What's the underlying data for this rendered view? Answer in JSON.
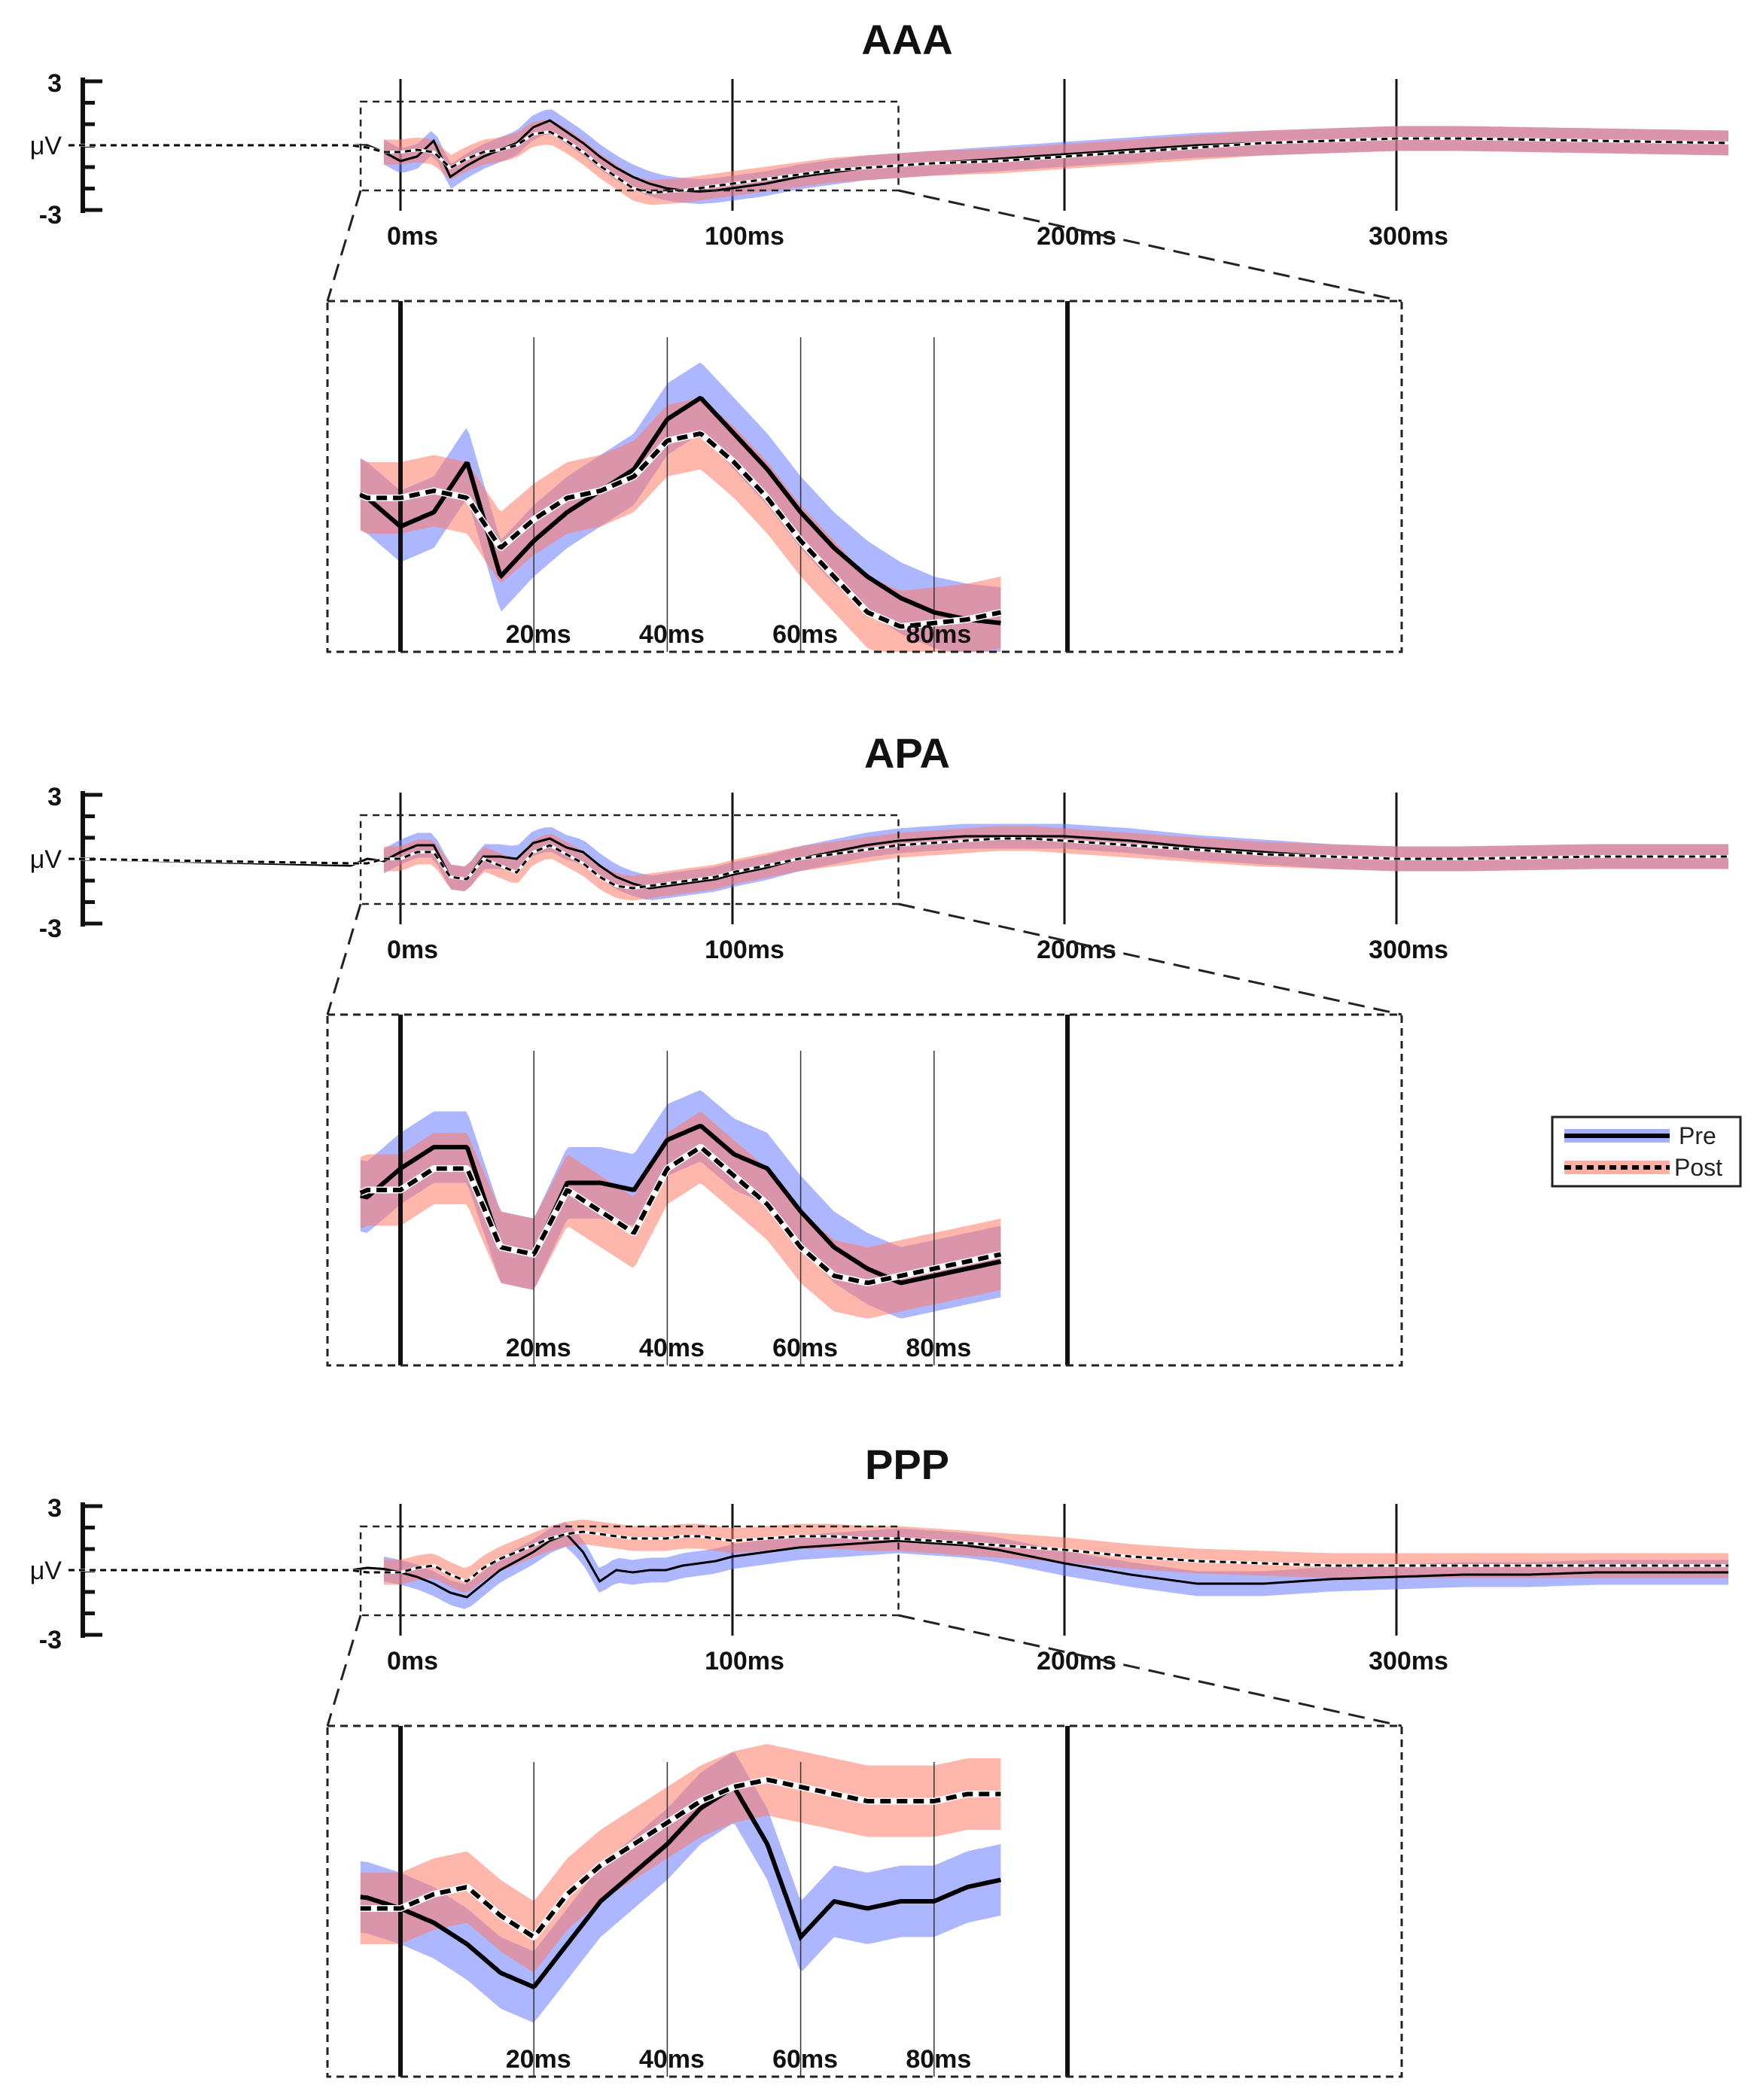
{
  "chart_data": [
    {
      "type": "line",
      "title": "AAA",
      "x_units": "ms",
      "xlim": [
        -100,
        400
      ],
      "ylim": [
        -3,
        3
      ],
      "y_axis": {
        "label": "μV",
        "ticks": [
          "3",
          "-3"
        ]
      },
      "x_ticks": [
        "0ms",
        "100ms",
        "200ms",
        "300ms"
      ],
      "inset": {
        "xlim": [
          -5,
          100
        ],
        "ticks": [
          "20ms",
          "40ms",
          "60ms",
          "80ms"
        ]
      },
      "series": [
        {
          "name": "Pre",
          "x": [
            -100,
            -15,
            -10,
            -5,
            0,
            5,
            10,
            15,
            20,
            25,
            30,
            35,
            40,
            45,
            50,
            55,
            60,
            65,
            70,
            75,
            80,
            85,
            90,
            95,
            100,
            110,
            120,
            130,
            140,
            150,
            160,
            170,
            180,
            190,
            200,
            220,
            240,
            260,
            280,
            300,
            320,
            340,
            360,
            380,
            400
          ],
          "y": [
            0,
            0,
            0,
            -0.3,
            -0.7,
            -0.5,
            0.2,
            -1.4,
            -0.9,
            -0.5,
            -0.2,
            0.1,
            0.8,
            1.1,
            0.6,
            0.1,
            -0.5,
            -1.0,
            -1.4,
            -1.7,
            -1.9,
            -2.0,
            -2.05,
            -2.0,
            -1.9,
            -1.7,
            -1.4,
            -1.2,
            -1.0,
            -0.9,
            -0.8,
            -0.7,
            -0.6,
            -0.5,
            -0.4,
            -0.2,
            0,
            0.1,
            0.2,
            0.3,
            0.3,
            0.25,
            0.2,
            0.15,
            0.1
          ]
        },
        {
          "name": "Post",
          "x": [
            -100,
            -15,
            -10,
            -5,
            0,
            5,
            10,
            15,
            20,
            25,
            30,
            35,
            40,
            45,
            50,
            55,
            60,
            65,
            70,
            75,
            80,
            85,
            90,
            95,
            100,
            110,
            120,
            130,
            140,
            150,
            160,
            170,
            180,
            190,
            200,
            220,
            240,
            260,
            280,
            300,
            320,
            340,
            360,
            380,
            400
          ],
          "y": [
            0,
            0,
            -0.1,
            -0.3,
            -0.3,
            -0.2,
            -0.3,
            -1.0,
            -0.6,
            -0.3,
            -0.2,
            0,
            0.5,
            0.6,
            0.2,
            -0.3,
            -0.9,
            -1.4,
            -1.9,
            -2.1,
            -2.05,
            -2.0,
            -1.9,
            -1.8,
            -1.7,
            -1.5,
            -1.3,
            -1.1,
            -1.0,
            -0.9,
            -0.8,
            -0.75,
            -0.7,
            -0.6,
            -0.5,
            -0.3,
            -0.1,
            0.1,
            0.2,
            0.3,
            0.3,
            0.25,
            0.2,
            0.15,
            0.1
          ]
        }
      ]
    },
    {
      "type": "line",
      "title": "APA",
      "x_units": "ms",
      "xlim": [
        -100,
        400
      ],
      "ylim": [
        -3,
        3
      ],
      "y_axis": {
        "label": "μV",
        "ticks": [
          "3",
          "-3"
        ]
      },
      "x_ticks": [
        "0ms",
        "100ms",
        "200ms",
        "300ms"
      ],
      "inset": {
        "xlim": [
          -5,
          100
        ],
        "ticks": [
          "20ms",
          "40ms",
          "60ms",
          "80ms"
        ]
      },
      "series": [
        {
          "name": "Pre",
          "x": [
            -100,
            -15,
            -10,
            -5,
            0,
            5,
            10,
            15,
            20,
            25,
            30,
            35,
            40,
            45,
            50,
            55,
            60,
            65,
            70,
            75,
            80,
            85,
            90,
            95,
            100,
            110,
            120,
            130,
            140,
            150,
            160,
            170,
            180,
            190,
            200,
            220,
            240,
            260,
            280,
            300,
            320,
            340,
            360,
            380,
            400
          ],
          "y": [
            0,
            -0.3,
            0,
            -0.1,
            0.3,
            0.6,
            0.6,
            -0.8,
            -0.9,
            0.1,
            0.1,
            0.0,
            0.7,
            0.9,
            0.5,
            0.3,
            -0.3,
            -0.8,
            -1.1,
            -1.3,
            -1.2,
            -1.1,
            -1.0,
            -0.9,
            -0.7,
            -0.4,
            0,
            0.3,
            0.6,
            0.8,
            0.9,
            1.0,
            1.0,
            1.0,
            1.0,
            0.8,
            0.5,
            0.3,
            0.1,
            0,
            0,
            0.05,
            0.1,
            0.1,
            0.1
          ]
        },
        {
          "name": "Post",
          "x": [
            -100,
            -15,
            -10,
            -5,
            0,
            5,
            10,
            15,
            20,
            25,
            30,
            35,
            40,
            45,
            50,
            55,
            60,
            65,
            70,
            75,
            80,
            85,
            90,
            95,
            100,
            110,
            120,
            130,
            140,
            150,
            160,
            170,
            180,
            190,
            200,
            220,
            240,
            260,
            280,
            300,
            320,
            340,
            360,
            380,
            400
          ],
          "y": [
            0,
            -0.2,
            -0.2,
            0,
            0,
            0.3,
            0.3,
            -0.8,
            -0.9,
            0,
            -0.3,
            -0.6,
            0.3,
            0.6,
            0.2,
            -0.2,
            -0.8,
            -1.2,
            -1.3,
            -1.2,
            -1.1,
            -1.0,
            -0.9,
            -0.8,
            -0.6,
            -0.3,
            0,
            0.2,
            0.4,
            0.6,
            0.7,
            0.8,
            0.9,
            0.9,
            0.8,
            0.6,
            0.4,
            0.2,
            0.1,
            0,
            0,
            0.05,
            0.1,
            0.1,
            0.1
          ]
        }
      ]
    },
    {
      "type": "line",
      "title": "PPP",
      "x_units": "ms",
      "xlim": [
        -100,
        400
      ],
      "ylim": [
        -3,
        3
      ],
      "y_axis": {
        "label": "μV",
        "ticks": [
          "3",
          "-3"
        ]
      },
      "x_ticks": [
        "0ms",
        "100ms",
        "200ms",
        "300ms"
      ],
      "inset": {
        "xlim": [
          -5,
          100
        ],
        "ticks": [
          "20ms",
          "40ms",
          "60ms",
          "80ms"
        ]
      },
      "series": [
        {
          "name": "Pre",
          "x": [
            -100,
            -15,
            -10,
            -5,
            0,
            5,
            10,
            15,
            20,
            25,
            30,
            35,
            40,
            45,
            50,
            55,
            60,
            65,
            70,
            75,
            80,
            85,
            90,
            95,
            100,
            110,
            120,
            130,
            140,
            150,
            160,
            170,
            180,
            190,
            200,
            220,
            240,
            260,
            280,
            300,
            320,
            340,
            360,
            380,
            400
          ],
          "y": [
            0,
            0,
            0.1,
            0.05,
            -0.1,
            -0.3,
            -0.6,
            -1.0,
            -1.2,
            -0.6,
            0.0,
            0.4,
            0.8,
            1.3,
            1.6,
            0.8,
            -0.5,
            0.0,
            -0.1,
            0.0,
            0.0,
            0.2,
            0.3,
            0.4,
            0.6,
            0.8,
            1.0,
            1.1,
            1.2,
            1.3,
            1.2,
            1.1,
            0.9,
            0.6,
            0.3,
            -0.2,
            -0.6,
            -0.6,
            -0.4,
            -0.3,
            -0.2,
            -0.2,
            -0.1,
            -0.1,
            -0.1
          ]
        },
        {
          "name": "Post",
          "x": [
            -100,
            -15,
            -10,
            -5,
            0,
            5,
            10,
            15,
            20,
            25,
            30,
            35,
            40,
            45,
            50,
            55,
            60,
            65,
            70,
            75,
            80,
            85,
            90,
            95,
            100,
            110,
            120,
            130,
            140,
            150,
            160,
            170,
            180,
            190,
            200,
            220,
            240,
            260,
            280,
            300,
            320,
            340,
            360,
            380,
            400
          ],
          "y": [
            0,
            0,
            -0.1,
            -0.1,
            -0.1,
            0.1,
            0.2,
            -0.2,
            -0.5,
            0.1,
            0.5,
            0.8,
            1.1,
            1.4,
            1.6,
            1.7,
            1.6,
            1.5,
            1.4,
            1.4,
            1.4,
            1.5,
            1.5,
            1.4,
            1.3,
            1.4,
            1.5,
            1.5,
            1.4,
            1.4,
            1.3,
            1.2,
            1.1,
            1.0,
            0.9,
            0.6,
            0.4,
            0.3,
            0.2,
            0.2,
            0.2,
            0.2,
            0.2,
            0.2,
            0.2
          ]
        }
      ]
    }
  ],
  "legend": {
    "position": "right",
    "items": [
      {
        "label": "Pre",
        "style": "solid"
      },
      {
        "label": "Post",
        "style": "dotted"
      }
    ]
  },
  "colors": {
    "pre_band": "#6a7bff",
    "post_band": "#ff7a66",
    "overlap_band": "#9a4d8c",
    "line": "#000000",
    "frame": "#222222"
  }
}
